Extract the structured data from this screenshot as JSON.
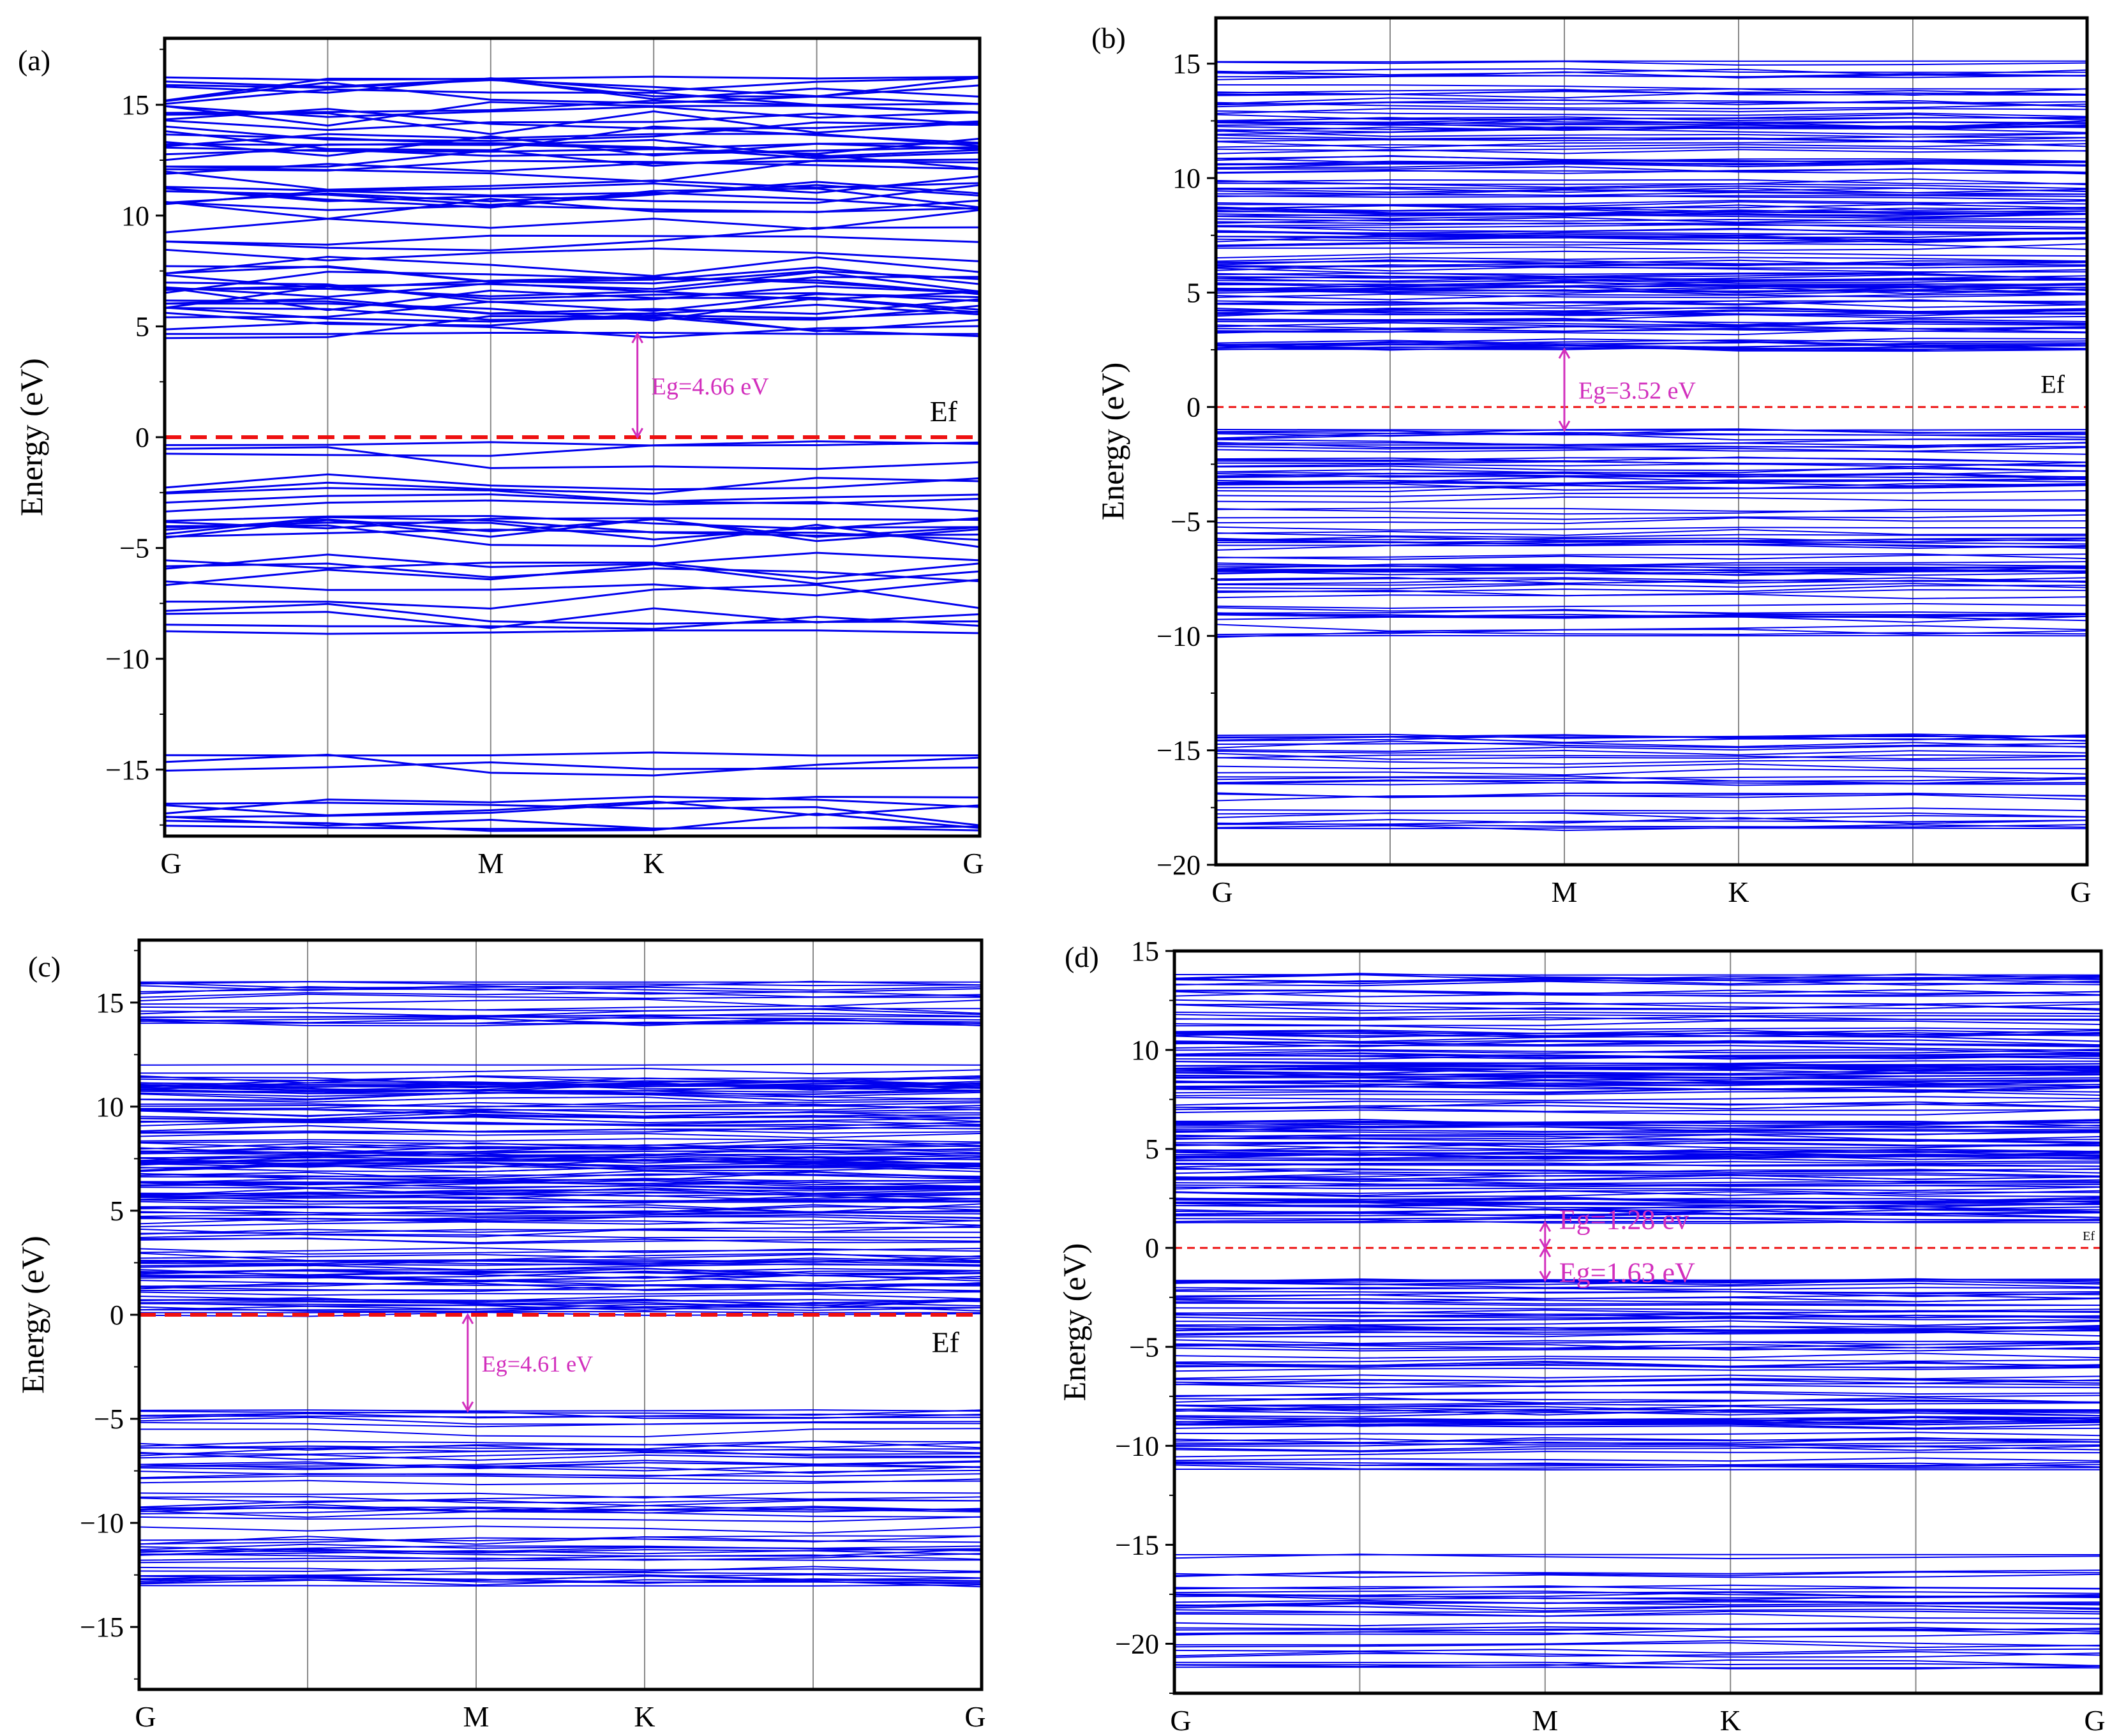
{
  "figure": {
    "band_color": "#0000ee",
    "fermi_color": "#ee1111",
    "gap_color": "#d22fbd",
    "grid_color": "#888888"
  },
  "chart_data": [
    {
      "type": "line",
      "panel_label": "(a)",
      "ylabel": "Energy  (eV)",
      "xlabel": "",
      "kpoints": [
        "G",
        "M",
        "K",
        "G"
      ],
      "kpoint_positions": [
        0,
        2,
        3,
        5
      ],
      "xlim": [
        0,
        5
      ],
      "ylim": [
        -18,
        18
      ],
      "yticks": [
        -15,
        -10,
        -5,
        0,
        5,
        10,
        15
      ],
      "fermi_level": 0,
      "fermi_label": "Ef",
      "band_gaps": [
        {
          "label": "Eg=4.66 eV",
          "value": 4.66,
          "from": 0,
          "to": 4.66,
          "x": 2.9
        }
      ],
      "bands": {
        "conduction_min": 4.66,
        "conduction_max": 16.2,
        "conduction_count": 60,
        "valence_groups": [
          {
            "min": -8.8,
            "max": -0.3,
            "count": 26
          },
          {
            "min": -17.6,
            "max": -14.3,
            "count": 10
          }
        ],
        "dispersion": 0.55
      }
    },
    {
      "type": "line",
      "panel_label": "(b)",
      "ylabel": "Energy  (eV)",
      "xlabel": "",
      "kpoints": [
        "G",
        "M",
        "K",
        "G"
      ],
      "kpoint_positions": [
        0,
        2,
        3,
        5
      ],
      "xlim": [
        0,
        5
      ],
      "ylim": [
        -20,
        17
      ],
      "yticks": [
        -20,
        -15,
        -10,
        -5,
        0,
        5,
        10,
        15
      ],
      "fermi_level": 0,
      "fermi_label": "Ef",
      "band_gaps": [
        {
          "label": "Eg=3.52 eV",
          "value": 3.52,
          "from": -1.0,
          "to": 2.52,
          "x": 2.0
        }
      ],
      "bands": {
        "conduction_min": 2.52,
        "conduction_max": 15.1,
        "conduction_count": 150,
        "valence_groups": [
          {
            "min": -10.0,
            "max": -1.0,
            "count": 80
          },
          {
            "min": -18.4,
            "max": -14.4,
            "count": 30
          }
        ],
        "dispersion": 0.15
      }
    },
    {
      "type": "line",
      "panel_label": "(c)",
      "ylabel": "Energy (eV)",
      "xlabel": "",
      "kpoints": [
        "G",
        "M",
        "K",
        "G"
      ],
      "kpoint_positions": [
        0,
        2,
        3,
        5
      ],
      "xlim": [
        0,
        5
      ],
      "ylim": [
        -18,
        18
      ],
      "yticks": [
        -15,
        -10,
        -5,
        0,
        5,
        10,
        15
      ],
      "fermi_level": 0,
      "fermi_label": "Ef",
      "band_gaps": [
        {
          "label": "Eg=4.61 eV",
          "value": 4.61,
          "from": -4.61,
          "to": 0,
          "x": 1.95
        }
      ],
      "bands": {
        "conduction_groups": [
          {
            "min": 0.1,
            "max": 12.0,
            "count": 150
          },
          {
            "min": 14.0,
            "max": 16.0,
            "count": 20
          }
        ],
        "valence_groups": [
          {
            "min": -13.0,
            "max": -4.6,
            "count": 60
          }
        ],
        "dispersion": 0.2
      }
    },
    {
      "type": "line",
      "panel_label": "(d)",
      "ylabel": "Energy  (eV)",
      "xlabel": "",
      "kpoints": [
        "G",
        "M",
        "K",
        "G"
      ],
      "kpoint_positions": [
        0,
        2,
        3,
        5
      ],
      "xlim": [
        0,
        5
      ],
      "ylim": [
        -22.5,
        15
      ],
      "yticks": [
        -20,
        -15,
        -10,
        -5,
        0,
        5,
        10,
        15
      ],
      "fermi_level": 0,
      "fermi_label": "Ef",
      "band_gaps": [
        {
          "label": "Eg=1.28 ev",
          "value": 1.28,
          "from": 0,
          "to": 1.28,
          "x": 2.0
        },
        {
          "label": "Eg=1.63 eV",
          "value": 1.63,
          "from": -1.63,
          "to": 0,
          "x": 2.0
        }
      ],
      "bands": {
        "conduction_min": 1.28,
        "conduction_max": 13.8,
        "conduction_count": 150,
        "valence_groups": [
          {
            "min": -11.2,
            "max": -1.63,
            "count": 90
          },
          {
            "min": -21.2,
            "max": -15.5,
            "count": 35
          }
        ],
        "dispersion": 0.15
      }
    }
  ]
}
